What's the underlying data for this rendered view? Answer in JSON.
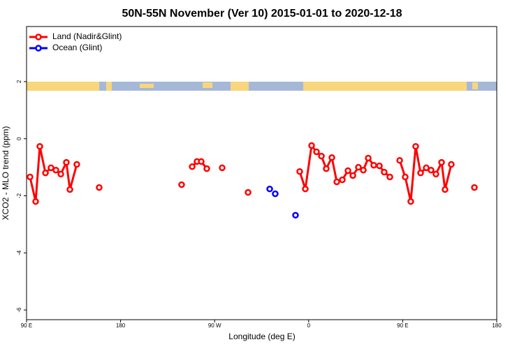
{
  "chart_data": {
    "type": "line",
    "title": "50N-55N November (Ver 10)   2015-01-01 to 2020-12-18",
    "x_label": "Longitude (deg E)",
    "y_label": "XCO2 - MLO trend (ppm)",
    "xlim": [
      90,
      540
    ],
    "ylim": [
      -6.34,
      3.93
    ],
    "xticks": [
      {
        "value": 90,
        "label": "90 E"
      },
      180,
      {
        "value": 270,
        "label": "90 W"
      },
      {
        "value": 360,
        "label": "0"
      },
      {
        "value": 450,
        "label": "90 E"
      },
      {
        "value": 540,
        "label": "180"
      }
    ],
    "yticks": [
      -6,
      -4,
      -2,
      0,
      2
    ],
    "legend": "top-left",
    "series": [
      {
        "name": "Land (Nadir&Glint)",
        "color": "#ff0000",
        "x": [
          93.3,
          98.7,
          102.7,
          108.1,
          113.4,
          118.1,
          122.8,
          128.1,
          131.5,
          138.1,
          null,
          159.5,
          null,
          238.4,
          null,
          248.5,
          253.1,
          257.2,
          262.5,
          null,
          277.2,
          null,
          302.0,
          null,
          351.4,
          356.8,
          362.8,
          367.5,
          372.2,
          376.8,
          382.2,
          386.9,
          392.2,
          397.6,
          402.3,
          407.6,
          412.3,
          417.0,
          422.3,
          427.7,
          432.3,
          437.7,
          null,
          447.1,
          452.4,
          457.7,
          462.4,
          467.1,
          472.5,
          477.1,
          481.8,
          487.2,
          490.5,
          496.5,
          null,
          518.6
        ],
        "values": [
          -1.34,
          -2.2,
          -0.27,
          -1.2,
          -1.02,
          -1.1,
          -1.24,
          -0.83,
          -1.78,
          -0.9,
          null,
          -1.71,
          null,
          -1.61,
          null,
          -0.98,
          -0.8,
          -0.8,
          -1.05,
          null,
          -1.02,
          null,
          -1.88,
          null,
          -1.15,
          -1.76,
          -0.24,
          -0.46,
          -0.61,
          -1.05,
          -0.66,
          -1.51,
          -1.44,
          -1.12,
          -1.29,
          -1.0,
          -1.1,
          -0.68,
          -0.93,
          -0.95,
          -1.17,
          -1.34,
          null,
          -0.76,
          -1.34,
          -2.2,
          -0.27,
          -1.2,
          -1.02,
          -1.1,
          -1.24,
          -0.83,
          -1.78,
          -0.9,
          null,
          -1.71
        ]
      },
      {
        "name": "Ocean (Glint)",
        "color": "#0000ff",
        "x": [
          322.7,
          null,
          328.0,
          null,
          347.4
        ],
        "values": [
          -1.76,
          null,
          -1.93,
          null,
          -2.68
        ]
      }
    ]
  }
}
